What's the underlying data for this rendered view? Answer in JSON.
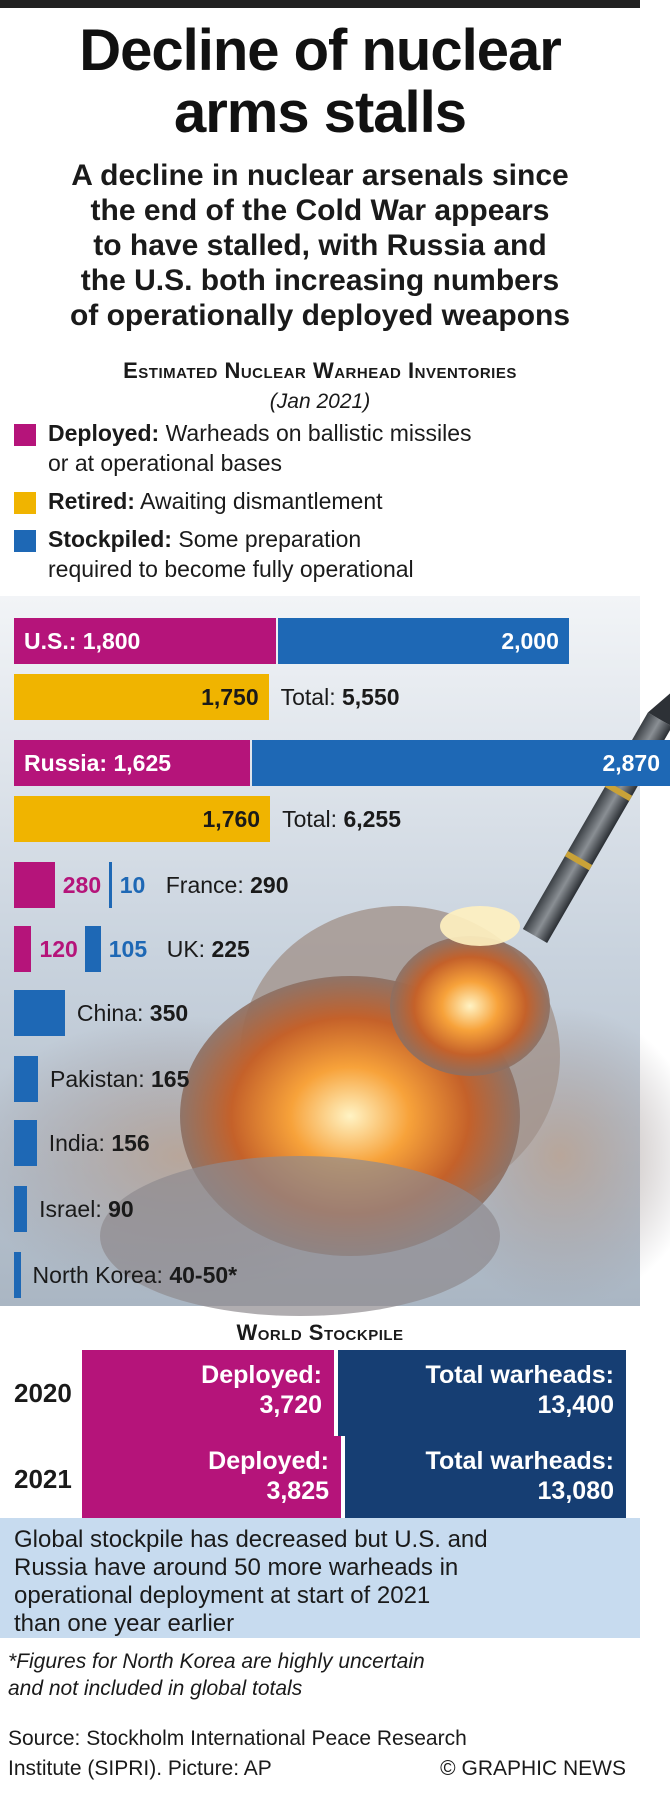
{
  "header": {
    "title_line1": "Decline of nuclear",
    "title_line2": "arms stalls",
    "subtitle_lines": [
      "A decline in nuclear arsenals since",
      "the end of the Cold War appears",
      "to have stalled, with Russia and",
      "the U.S. both increasing numbers",
      "of operationally deployed weapons"
    ]
  },
  "section": {
    "title": "Estimated Nuclear Warhead Inventories",
    "date": "(Jan 2021)"
  },
  "legend": [
    {
      "key": "Deployed:",
      "desc": " Warheads on ballistic missiles",
      "desc2": "or at operational bases",
      "color": "#b5147a"
    },
    {
      "key": "Retired:",
      "desc": " Awaiting dismantlement",
      "desc2": "",
      "color": "#f0b400"
    },
    {
      "key": "Stockpiled:",
      "desc": " Some preparation",
      "desc2": "required to become fully operational",
      "color": "#1e68b5"
    }
  ],
  "chart_data": {
    "type": "bar",
    "title": "Estimated Nuclear Warhead Inventories",
    "subtitle": "(Jan 2021)",
    "series_names": [
      "Deployed",
      "Retired",
      "Stockpiled"
    ],
    "countries": [
      {
        "name": "U.S.",
        "deployed": 1800,
        "stockpiled": 2000,
        "retired": 1750,
        "total": 5550,
        "deployed_label": "U.S.: 1,800",
        "stockpiled_label": "2,000",
        "retired_label": "1,750",
        "total_label": "5,550"
      },
      {
        "name": "Russia",
        "deployed": 1625,
        "stockpiled": 2870,
        "retired": 1760,
        "total": 6255,
        "deployed_label": "Russia: 1,625",
        "stockpiled_label": "2,870",
        "retired_label": "1,760",
        "total_label": "6,255"
      },
      {
        "name": "France",
        "deployed": 280,
        "stockpiled": 10,
        "total": 290,
        "deployed_label": "280",
        "stockpiled_label": "10",
        "total_label": "290"
      },
      {
        "name": "UK",
        "deployed": 120,
        "stockpiled": 105,
        "total": 225,
        "deployed_label": "120",
        "stockpiled_label": "105",
        "total_label": "225"
      },
      {
        "name": "China",
        "stockpiled": 350,
        "total": 350,
        "total_label": "350"
      },
      {
        "name": "Pakistan",
        "stockpiled": 165,
        "total": 165,
        "total_label": "165"
      },
      {
        "name": "India",
        "stockpiled": 156,
        "total": 156,
        "total_label": "156"
      },
      {
        "name": "Israel",
        "stockpiled": 90,
        "total": 90,
        "total_label": "90"
      },
      {
        "name": "North Korea",
        "stockpiled": 45,
        "total": 45,
        "total_label": "40-50*"
      }
    ],
    "labels": {
      "total_prefix": "Total: ",
      "france": "France: ",
      "uk": "UK: ",
      "china": "China: ",
      "pakistan": "Pakistan: ",
      "india": "India: ",
      "israel": "Israel: ",
      "north_korea": "North Korea: "
    }
  },
  "world": {
    "title": "World Stockpile",
    "rows": [
      {
        "year": "2020",
        "deployed_label": "Deployed:",
        "deployed_value": "3,720",
        "total_label": "Total warheads:",
        "total_value": "13,400",
        "deployed": 3720,
        "total": 13400
      },
      {
        "year": "2021",
        "deployed_label": "Deployed:",
        "deployed_value": "3,825",
        "total_label": "Total warheads:",
        "total_value": "13,080",
        "deployed": 3825,
        "total": 13080
      }
    ]
  },
  "note": {
    "line1": "Global stockpile has decreased but U.S. and",
    "line2": "Russia have around 50 more warheads in",
    "line3": "operational deployment at start of 2021",
    "line4": "than one year earlier"
  },
  "footnote": {
    "line1": "*Figures for North Korea are highly uncertain",
    "line2": "and not included in global totals"
  },
  "source": {
    "line1": "Source: Stockholm International Peace Research",
    "line2": "Institute (SIPRI). Picture: AP",
    "credit": "© GRAPHIC NEWS"
  },
  "colors": {
    "deployed": "#b5147a",
    "retired": "#f0b400",
    "stockpiled": "#1e68b5",
    "navy": "#163e73",
    "note_bg": "#c7dbef"
  }
}
